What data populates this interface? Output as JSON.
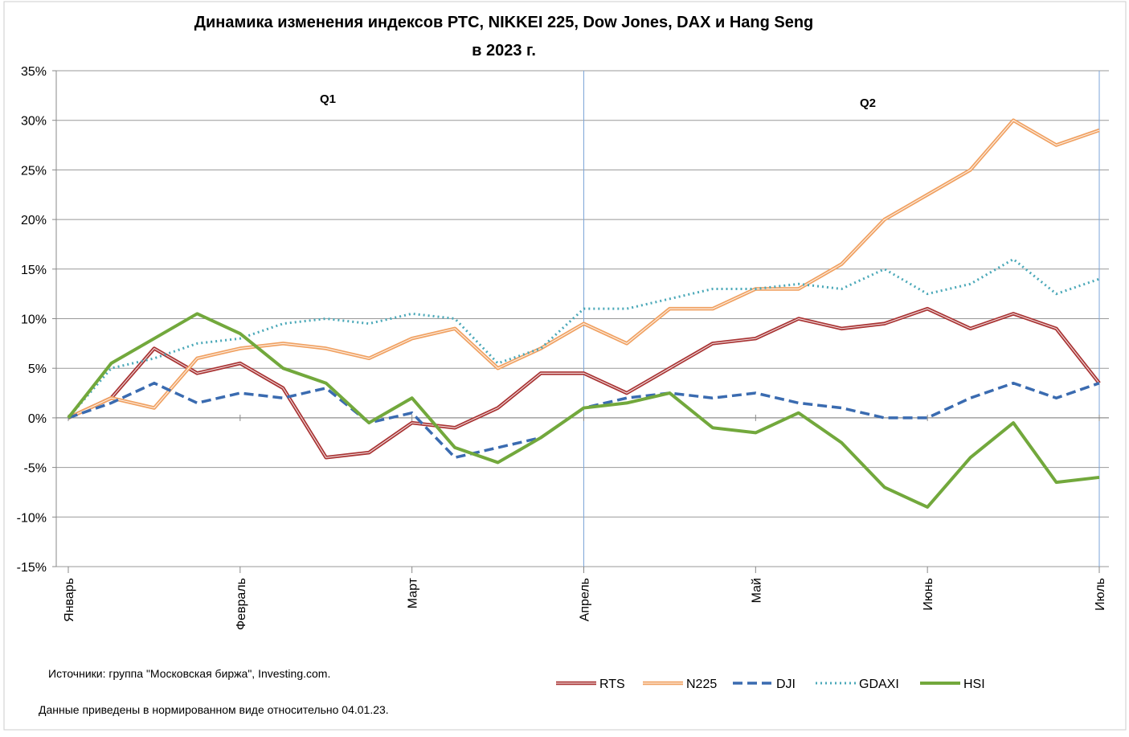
{
  "chart_data": {
    "type": "line",
    "title": [
      "Динамика изменения индексов  РТС, NIKKEI 225, Dow Jones, DAX и  Hang Seng",
      "в 2023 г."
    ],
    "annotations": [
      "Q1",
      "Q2"
    ],
    "notes": [
      "Источники:  группа \"Московская биржа\",  Investing.com.",
      "Данные приведены  в нормированном виде относительно 04.01.23."
    ],
    "x": [
      0,
      0.25,
      0.5,
      0.75,
      1,
      1.25,
      1.5,
      1.75,
      2,
      2.25,
      2.5,
      2.75,
      3,
      3.25,
      3.5,
      3.75,
      4,
      4.25,
      4.5,
      4.75,
      5,
      5.25,
      5.5,
      5.75,
      6
    ],
    "xlim": [
      0,
      6
    ],
    "xticks": [
      {
        "value": 0,
        "label": "Январь"
      },
      {
        "value": 1,
        "label": "Февраль"
      },
      {
        "value": 2,
        "label": "Март"
      },
      {
        "value": 3,
        "label": "Апрель"
      },
      {
        "value": 4,
        "label": "Май"
      },
      {
        "value": 5,
        "label": "Июнь"
      },
      {
        "value": 6,
        "label": "Июль"
      }
    ],
    "ylim": [
      -15,
      35
    ],
    "yticks": [
      {
        "value": -15,
        "label": "-15%"
      },
      {
        "value": -10,
        "label": "-10%"
      },
      {
        "value": -5,
        "label": "-5%"
      },
      {
        "value": 0,
        "label": "0%"
      },
      {
        "value": 5,
        "label": "5%"
      },
      {
        "value": 10,
        "label": "10%"
      },
      {
        "value": 15,
        "label": "15%"
      },
      {
        "value": 20,
        "label": "20%"
      },
      {
        "value": 25,
        "label": "25%"
      },
      {
        "value": 30,
        "label": "30%"
      },
      {
        "value": 35,
        "label": "35%"
      }
    ],
    "grid": true,
    "legend": "bottom",
    "series": [
      {
        "name": "RTS",
        "color": "#a83232",
        "style": "double",
        "values": [
          0,
          2,
          7,
          4.5,
          5.5,
          3,
          -4,
          -3.5,
          -0.5,
          -1,
          1,
          4.5,
          4.5,
          2.5,
          5,
          7.5,
          8,
          10,
          9,
          9.5,
          11,
          9,
          10.5,
          9,
          3.5
        ]
      },
      {
        "name": "N225",
        "color": "#f0a060",
        "style": "double",
        "values": [
          0,
          2,
          1,
          6,
          7,
          7.5,
          7,
          6,
          8,
          9,
          5,
          7,
          9.5,
          7.5,
          11,
          11,
          13,
          13,
          15.5,
          20,
          22.5,
          25,
          30,
          27.5,
          29
        ]
      },
      {
        "name": "DJI",
        "color": "#3a6bb0",
        "style": "dashed",
        "values": [
          0,
          1.5,
          3.5,
          1.5,
          2.5,
          2,
          3,
          -0.5,
          0.5,
          -4,
          -3,
          -2,
          1,
          2,
          2.5,
          2,
          2.5,
          1.5,
          1,
          0,
          0,
          2,
          3.5,
          2,
          3.5
        ]
      },
      {
        "name": "GDAXI",
        "color": "#4aa8b8",
        "style": "dotted",
        "values": [
          0,
          5,
          6,
          7.5,
          8,
          9.5,
          10,
          9.5,
          10.5,
          10,
          5.5,
          7,
          11,
          11,
          12,
          13,
          13,
          13.5,
          13,
          15,
          12.5,
          13.5,
          16,
          12.5,
          14
        ]
      },
      {
        "name": "HSI",
        "color": "#72a83c",
        "style": "solid",
        "values": [
          0,
          5.5,
          8,
          10.5,
          8.5,
          5,
          3.5,
          -0.5,
          2,
          -3,
          -4.5,
          -2,
          1,
          1.5,
          2.5,
          -1,
          -1.5,
          0.5,
          -2.5,
          -7,
          -9,
          -4,
          -0.5,
          -6.5,
          -6
        ]
      }
    ]
  }
}
